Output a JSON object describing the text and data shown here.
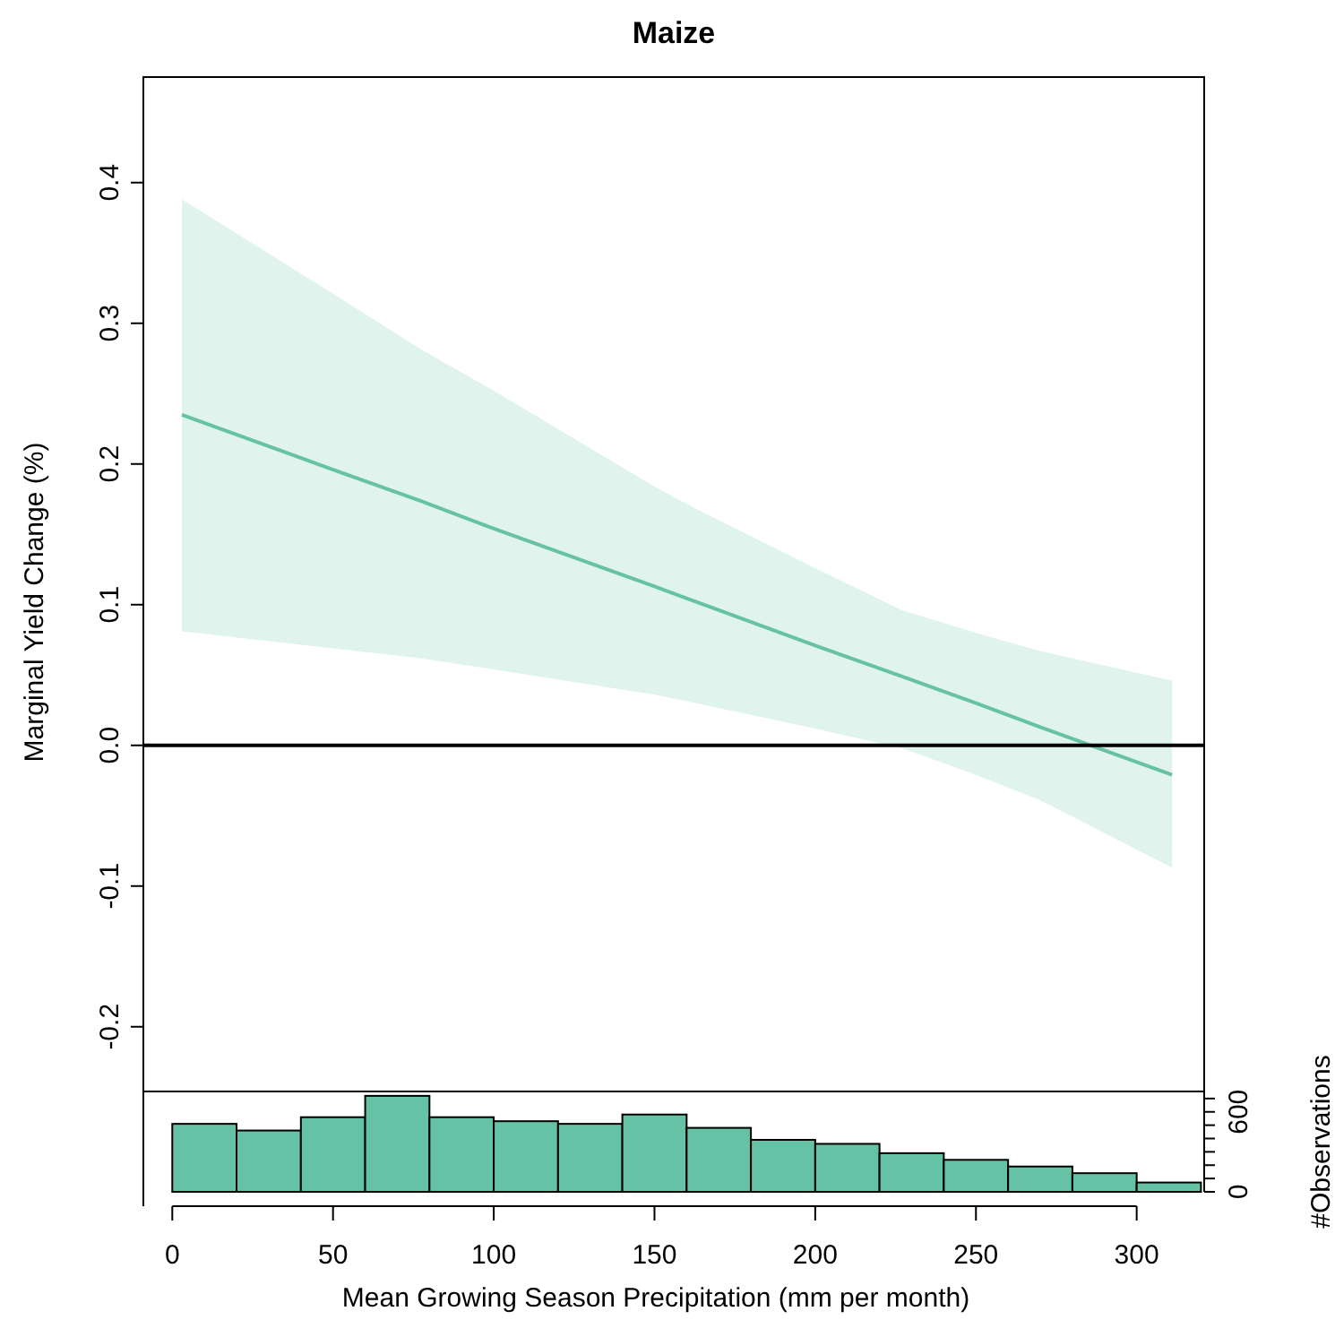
{
  "chart_data": [
    {
      "type": "line",
      "title": "Maize",
      "ylabel": "Marginal Yield Change (%)",
      "x": [
        3,
        50,
        77,
        100,
        150,
        163,
        200,
        227,
        250,
        270,
        311
      ],
      "series": [
        {
          "color": "#66c2a5",
          "values": [
            0.235,
            0.196,
            0.174,
            0.154,
            0.113,
            0.102,
            0.071,
            0.049,
            0.03,
            0.013,
            -0.021
          ],
          "lower": [
            0.081,
            0.069,
            0.062,
            0.054,
            0.036,
            0.03,
            0.012,
            -0.002,
            -0.021,
            -0.039,
            -0.087
          ],
          "upper": [
            0.388,
            0.321,
            0.282,
            0.252,
            0.184,
            0.168,
            0.126,
            0.096,
            0.08,
            0.067,
            0.046
          ]
        }
      ],
      "ref_lines": [
        {
          "axis": "y",
          "value": 0,
          "color": "#000000"
        }
      ],
      "xlim": [
        -9,
        321
      ],
      "ylim": [
        -0.246,
        0.475
      ],
      "yticks": [
        {
          "value": -0.2,
          "label": "-0.2"
        },
        {
          "value": -0.1,
          "label": "-0.1"
        },
        {
          "value": 0,
          "label": "0.0"
        },
        0.1,
        0.2,
        0.3,
        0.4
      ],
      "tick_labels": "y",
      "grid": false
    },
    {
      "type": "histogram",
      "xlabel": "Mean Growing Season Precipitation (mm per month)",
      "ylabel": "#Observations",
      "color": "#66c2a5",
      "bins": [
        0,
        20,
        40,
        60,
        80,
        100,
        120,
        140,
        160,
        180,
        200,
        220,
        240,
        260,
        280,
        300,
        320
      ],
      "values": [
        510,
        460,
        560,
        720,
        560,
        530,
        510,
        580,
        480,
        390,
        360,
        290,
        240,
        190,
        140,
        70
      ],
      "xlim": [
        -9,
        321
      ],
      "xticks": [
        0,
        50,
        100,
        150,
        200,
        250,
        300
      ],
      "ylim": [
        0,
        753
      ],
      "yticks": [
        0,
        {
          "value": 100,
          "label": null
        },
        {
          "value": 200,
          "label": null
        },
        {
          "value": 300,
          "label": null
        },
        {
          "value": 400,
          "label": null
        },
        {
          "value": 500,
          "label": null
        },
        600,
        {
          "value": 700,
          "label": null
        }
      ],
      "grid": false
    }
  ]
}
